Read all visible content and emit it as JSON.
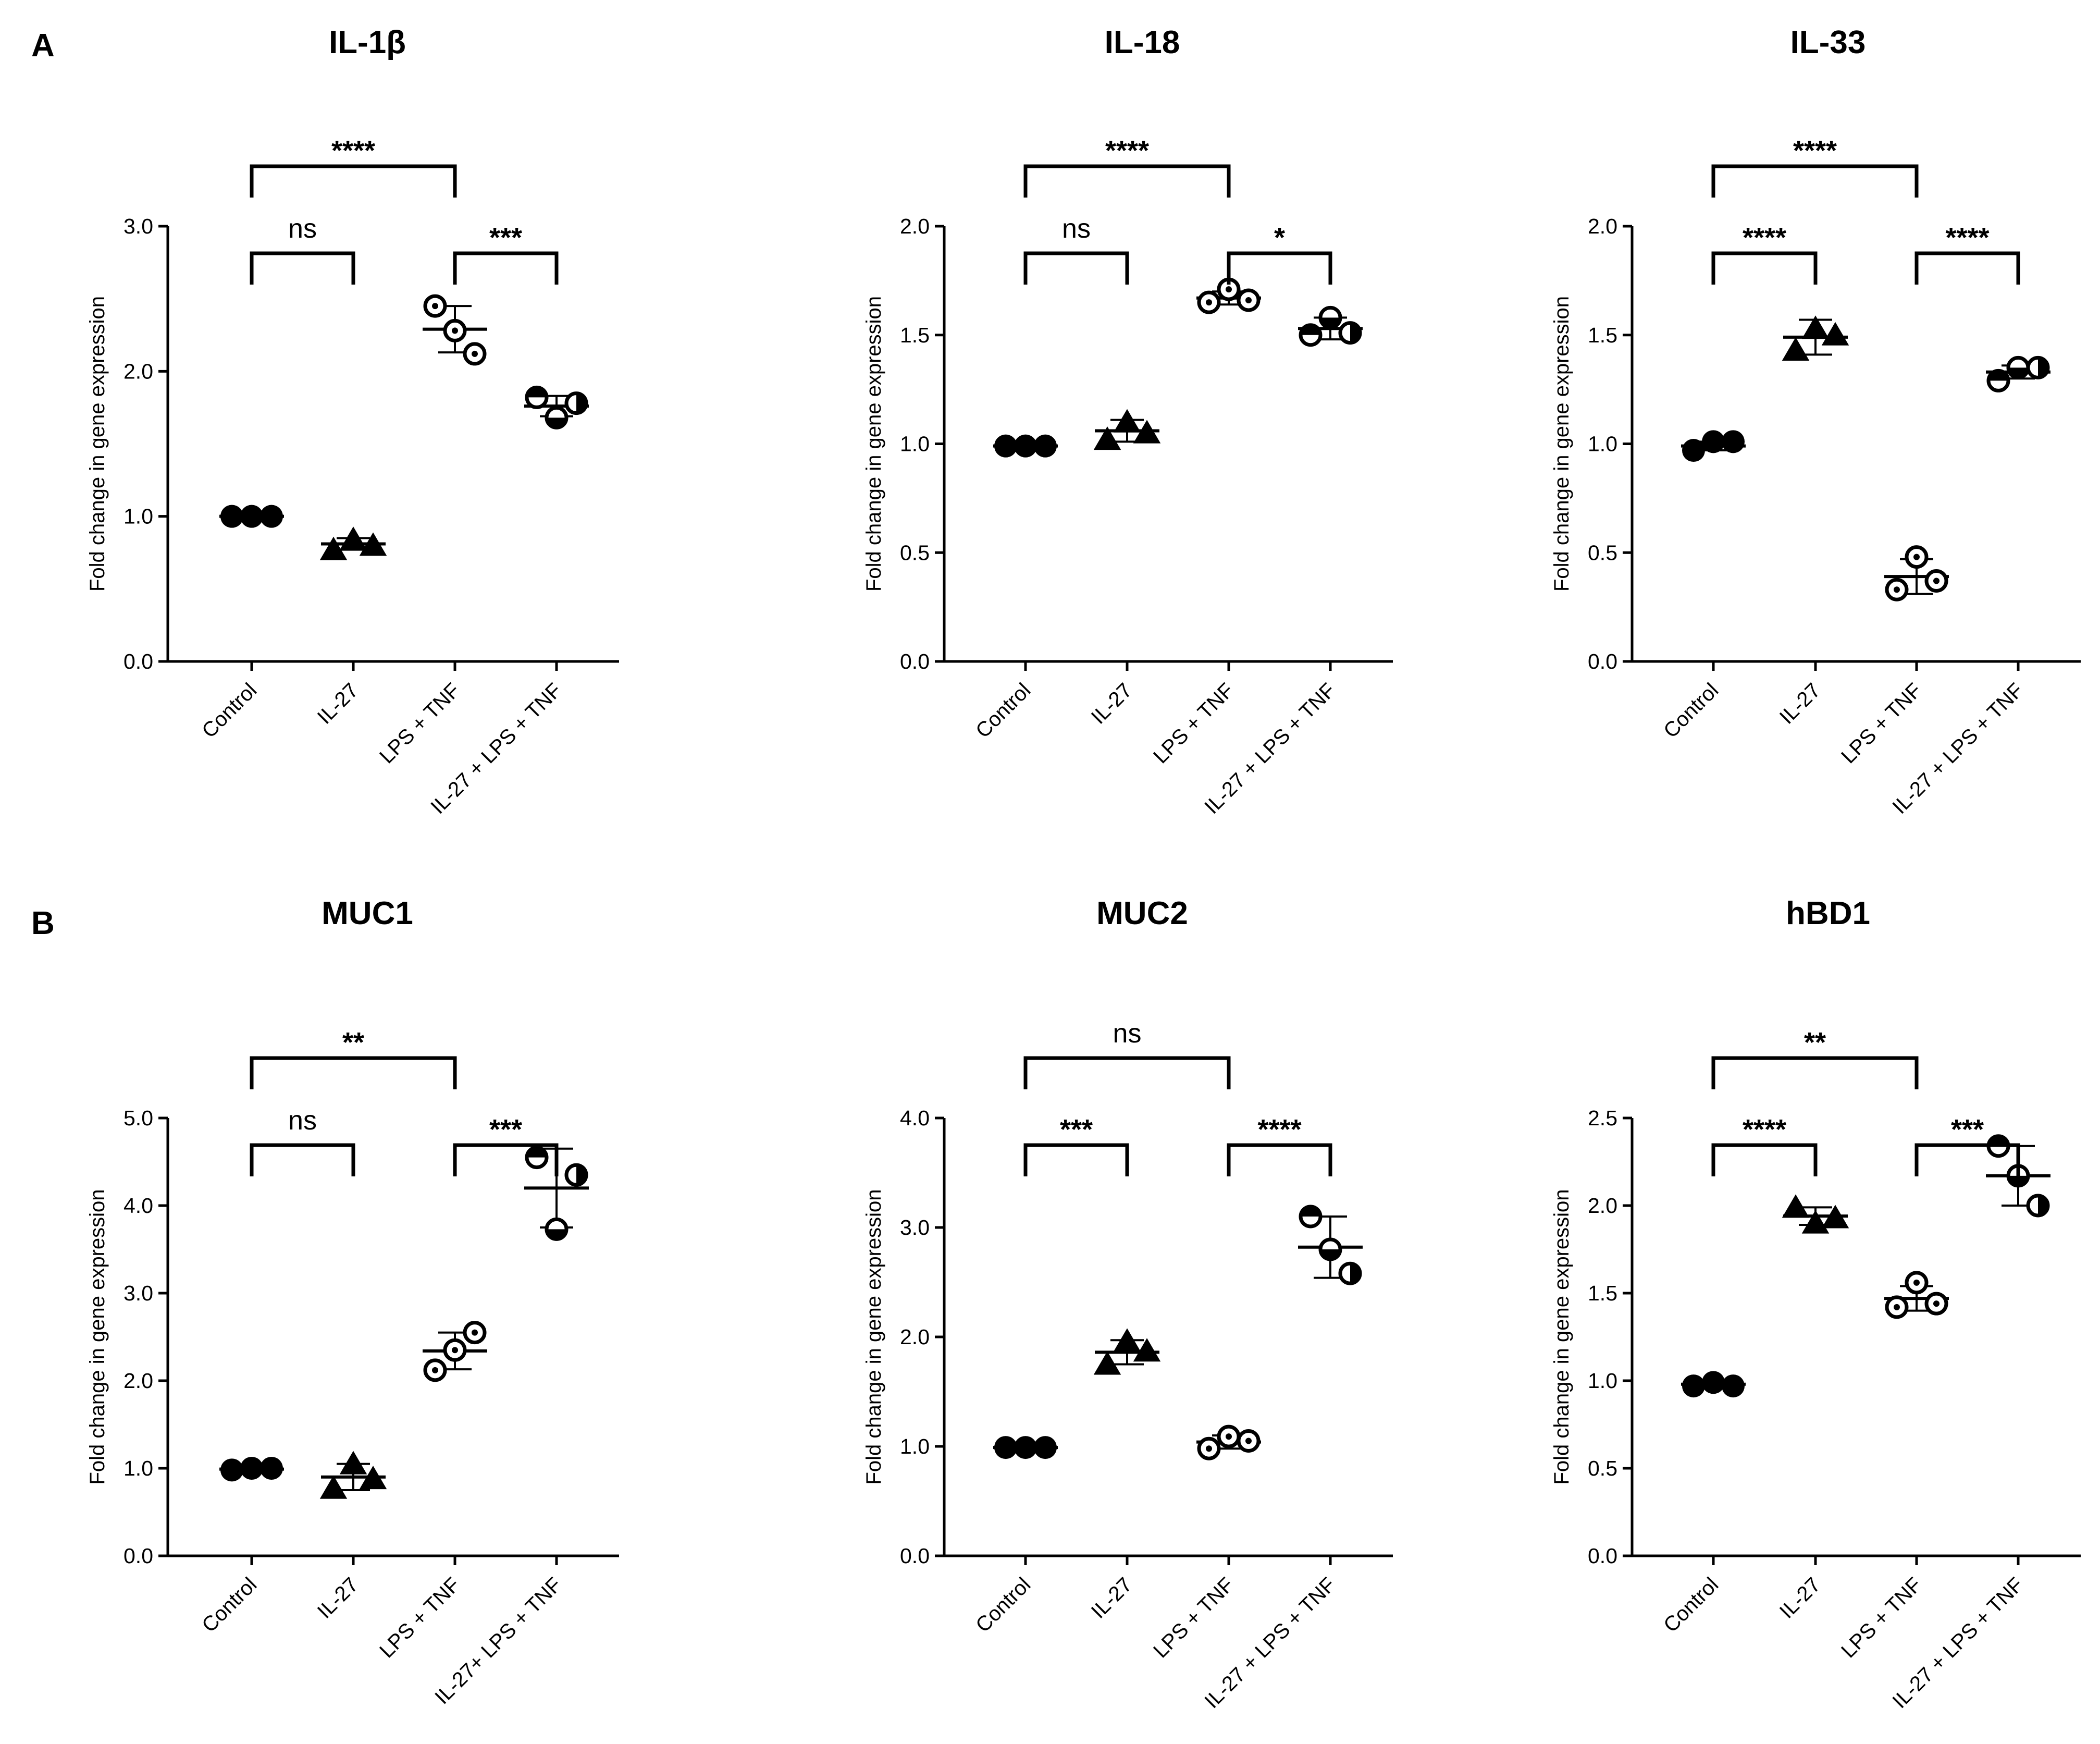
{
  "figure": {
    "panel_labels": [
      "A",
      "B"
    ]
  },
  "chart_data": [
    {
      "type": "scatter",
      "title": "IL-1β",
      "panel": "A",
      "ylabel": "Fold change in gene expression",
      "xlabel": "",
      "ylim": [
        0,
        3.0
      ],
      "yticks": [
        "0.0",
        "1.0",
        "2.0",
        "3.0"
      ],
      "ytick_values": [
        0,
        1,
        2,
        3
      ],
      "categories": [
        "Control",
        "IL-27",
        "LPS + TNF",
        "IL-27 + LPS + TNF"
      ],
      "points": [
        [
          1.0,
          1.0,
          1.0
        ],
        [
          0.77,
          0.84,
          0.8
        ],
        [
          2.45,
          2.28,
          2.12
        ],
        [
          1.82,
          1.68,
          1.78
        ]
      ],
      "mean": [
        1.0,
        0.81,
        2.29,
        1.76
      ],
      "sd": [
        0.01,
        0.04,
        0.16,
        0.07
      ],
      "comparisons": [
        {
          "from": 0,
          "to": 2,
          "label": "****",
          "level": 2
        },
        {
          "from": 0,
          "to": 1,
          "label": "ns",
          "level": 1
        },
        {
          "from": 2,
          "to": 3,
          "label": "***",
          "level": 1
        }
      ]
    },
    {
      "type": "scatter",
      "title": "IL-18",
      "panel": "A",
      "ylabel": "Fold change in gene expression",
      "xlabel": "",
      "ylim": [
        0,
        2.0
      ],
      "yticks": [
        "0.0",
        "0.5",
        "1.0",
        "1.5",
        "2.0"
      ],
      "ytick_values": [
        0,
        0.5,
        1.0,
        1.5,
        2.0
      ],
      "categories": [
        "Control",
        "IL-27",
        "LPS + TNF",
        "IL-27 + LPS + TNF"
      ],
      "points": [
        [
          0.99,
          0.99,
          0.99
        ],
        [
          1.02,
          1.1,
          1.05
        ],
        [
          1.65,
          1.71,
          1.66
        ],
        [
          1.5,
          1.58,
          1.51
        ]
      ],
      "mean": [
        0.99,
        1.06,
        1.67,
        1.53
      ],
      "sd": [
        0.01,
        0.05,
        0.03,
        0.05
      ],
      "comparisons": [
        {
          "from": 0,
          "to": 2,
          "label": "****",
          "level": 2
        },
        {
          "from": 0,
          "to": 1,
          "label": "ns",
          "level": 1
        },
        {
          "from": 2,
          "to": 3,
          "label": "*",
          "level": 1
        }
      ]
    },
    {
      "type": "scatter",
      "title": "IL-33",
      "panel": "A",
      "ylabel": "Fold change in gene expression",
      "xlabel": "",
      "ylim": [
        0,
        2.0
      ],
      "yticks": [
        "0.0",
        "0.5",
        "1.0",
        "1.5",
        "2.0"
      ],
      "ytick_values": [
        0,
        0.5,
        1.0,
        1.5,
        2.0
      ],
      "categories": [
        "Control",
        "IL-27",
        "LPS + TNF",
        "IL-27 + LPS + TNF"
      ],
      "points": [
        [
          0.97,
          1.01,
          1.01
        ],
        [
          1.43,
          1.53,
          1.5
        ],
        [
          0.33,
          0.48,
          0.37
        ],
        [
          1.29,
          1.35,
          1.35
        ]
      ],
      "mean": [
        0.99,
        1.49,
        0.39,
        1.33
      ],
      "sd": [
        0.02,
        0.08,
        0.08,
        0.03
      ],
      "comparisons": [
        {
          "from": 0,
          "to": 2,
          "label": "****",
          "level": 2
        },
        {
          "from": 0,
          "to": 1,
          "label": "****",
          "level": 1
        },
        {
          "from": 2,
          "to": 3,
          "label": "****",
          "level": 1
        }
      ]
    },
    {
      "type": "scatter",
      "title": "MUC1",
      "panel": "B",
      "ylabel": "Fold change in gene expression",
      "xlabel": "",
      "ylim": [
        0,
        5.0
      ],
      "yticks": [
        "0.0",
        "1.0",
        "2.0",
        "3.0",
        "4.0",
        "5.0"
      ],
      "ytick_values": [
        0,
        1,
        2,
        3,
        4,
        5
      ],
      "categories": [
        "Control",
        "IL-27",
        "LPS + TNF",
        "IL-27+ LPS + TNF"
      ],
      "points": [
        [
          0.98,
          1.0,
          1.0
        ],
        [
          0.77,
          1.05,
          0.88
        ],
        [
          2.12,
          2.35,
          2.55
        ],
        [
          4.55,
          3.73,
          4.35
        ]
      ],
      "mean": [
        0.99,
        0.9,
        2.34,
        4.2
      ],
      "sd": [
        0.01,
        0.15,
        0.21,
        0.45
      ],
      "comparisons": [
        {
          "from": 0,
          "to": 2,
          "label": "**",
          "level": 2
        },
        {
          "from": 0,
          "to": 1,
          "label": "ns",
          "level": 1
        },
        {
          "from": 2,
          "to": 3,
          "label": "***",
          "level": 1
        }
      ]
    },
    {
      "type": "scatter",
      "title": "MUC2",
      "panel": "B",
      "ylabel": "Fold change in gene expression",
      "xlabel": "",
      "ylim": [
        0,
        4.0
      ],
      "yticks": [
        "0.0",
        "1.0",
        "2.0",
        "3.0",
        "4.0"
      ],
      "ytick_values": [
        0,
        1,
        2,
        3,
        4
      ],
      "categories": [
        "Control",
        "IL-27",
        "LPS + TNF",
        "IL-27 + LPS + TNF"
      ],
      "points": [
        [
          0.99,
          0.99,
          0.99
        ],
        [
          1.75,
          1.96,
          1.87
        ],
        [
          0.98,
          1.09,
          1.05
        ],
        [
          3.1,
          2.8,
          2.58
        ]
      ],
      "mean": [
        0.99,
        1.86,
        1.04,
        2.82
      ],
      "sd": [
        0.01,
        0.11,
        0.06,
        0.28
      ],
      "comparisons": [
        {
          "from": 0,
          "to": 2,
          "label": "ns",
          "level": 2
        },
        {
          "from": 0,
          "to": 1,
          "label": "***",
          "level": 1
        },
        {
          "from": 2,
          "to": 3,
          "label": "****",
          "level": 1
        }
      ]
    },
    {
      "type": "scatter",
      "title": "hBD1",
      "panel": "B",
      "ylabel": "Fold change in gene expression",
      "xlabel": "",
      "ylim": [
        0,
        2.5
      ],
      "yticks": [
        "0.0",
        "0.5",
        "1.0",
        "1.5",
        "2.0",
        "2.5"
      ],
      "ytick_values": [
        0,
        0.5,
        1.0,
        1.5,
        2.0,
        2.5
      ],
      "categories": [
        "Control",
        "IL-27",
        "LPS + TNF",
        "IL-27 + LPS + TNF"
      ],
      "points": [
        [
          0.97,
          0.99,
          0.97
        ],
        [
          1.99,
          1.9,
          1.93
        ],
        [
          1.42,
          1.56,
          1.44
        ],
        [
          2.34,
          2.17,
          2.0
        ]
      ],
      "mean": [
        0.98,
        1.94,
        1.47,
        2.17
      ],
      "sd": [
        0.01,
        0.05,
        0.07,
        0.17
      ],
      "comparisons": [
        {
          "from": 0,
          "to": 2,
          "label": "**",
          "level": 2
        },
        {
          "from": 0,
          "to": 1,
          "label": "****",
          "level": 1
        },
        {
          "from": 2,
          "to": 3,
          "label": "***",
          "level": 1
        }
      ]
    }
  ]
}
